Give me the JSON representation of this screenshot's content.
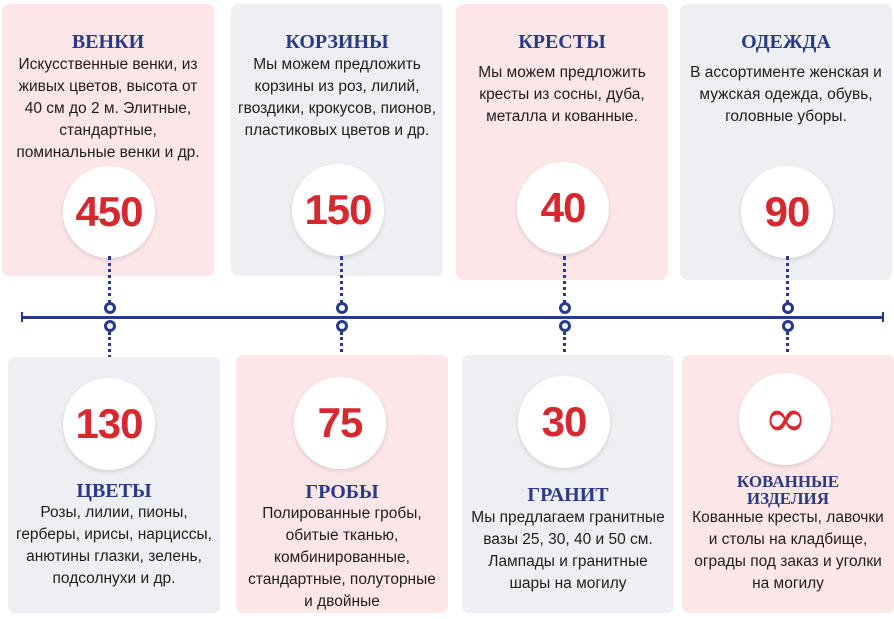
{
  "colors": {
    "pink_card": "#fde6e8",
    "gray_card": "#eeeff3",
    "title": "#2a3a86",
    "number": "#d7282f",
    "axis": "#27398a"
  },
  "top": [
    {
      "title": "ВЕНКИ",
      "text": "Искусственные венки, из живых цветов, высота от 40 см до 2 м. Элитные, стандартные, поминальные венки и др.",
      "number": "450"
    },
    {
      "title": "КОРЗИНЫ",
      "text": "Мы можем предложить корзины из роз, лилий, гвоздики, крокусов, пионов, пластиковых цветов и др.",
      "number": "150"
    },
    {
      "title": "КРЕСТЫ",
      "text": "Мы можем предложить кресты из сосны, дуба, металла и кованные.",
      "number": "40"
    },
    {
      "title": "ОДЕЖДА",
      "text": "В ассортименте женская и мужская одежда, обувь, головные уборы.",
      "number": "90"
    }
  ],
  "bottom": [
    {
      "number": "130",
      "title": "ЦВЕТЫ",
      "text": "Розы, лилии, пионы, герберы, ирисы, нарциссы, анютины глазки, зелень, подсолнухи и др."
    },
    {
      "number": "75",
      "title": "ГРОБЫ",
      "text": "Полированные гробы, обитые тканью, комбинированные, стандартные, полуторные и двойные"
    },
    {
      "number": "30",
      "title": "ГРАНИТ",
      "text": "Мы предлагаем гранитные вазы 25, 30, 40 и 50 см. Лампады и гранитные шары на могилу"
    },
    {
      "number": "∞",
      "number_icon": "infinity-icon",
      "title": "КОВАННЫЕ ИЗДЕЛИЯ",
      "text": "Кованные кресты, лавочки и столы на кладбище, ограды под заказ и уголки на могилу"
    }
  ]
}
